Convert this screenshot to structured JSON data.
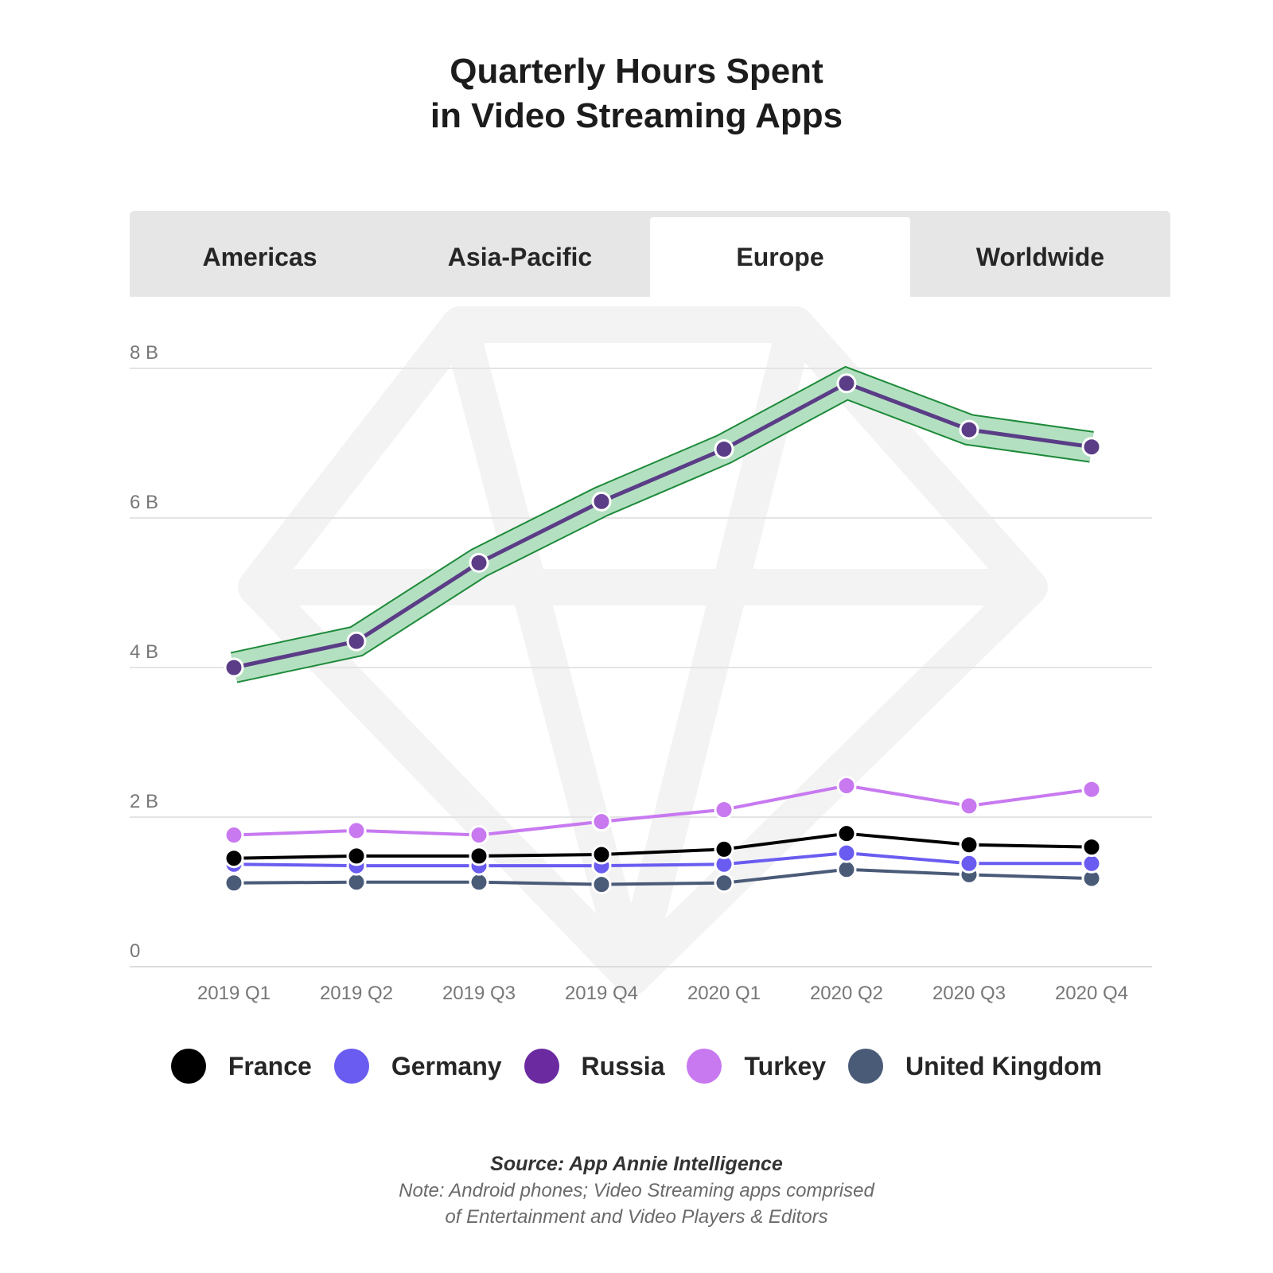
{
  "title": {
    "line1": "Quarterly Hours Spent",
    "line2": "in Video Streaming Apps"
  },
  "tabs": [
    {
      "label": "Americas",
      "active": false
    },
    {
      "label": "Asia-Pacific",
      "active": false
    },
    {
      "label": "Europe",
      "active": true
    },
    {
      "label": "Worldwide",
      "active": false
    }
  ],
  "chart_data": {
    "type": "line",
    "categories": [
      "2019 Q1",
      "2019 Q2",
      "2019 Q3",
      "2019 Q4",
      "2020 Q1",
      "2020 Q2",
      "2020 Q3",
      "2020 Q4"
    ],
    "ylim": [
      0,
      8
    ],
    "yticks": [
      0,
      2,
      4,
      6,
      8
    ],
    "ytick_labels": [
      "0",
      "2 B",
      "4 B",
      "6 B",
      "8 B"
    ],
    "grid": true,
    "highlighted_series": "Russia",
    "series": [
      {
        "name": "France",
        "color": "#000000",
        "values": [
          1.45,
          1.48,
          1.48,
          1.5,
          1.57,
          1.78,
          1.63,
          1.6
        ]
      },
      {
        "name": "Germany",
        "color": "#6a5cf0",
        "values": [
          1.37,
          1.35,
          1.35,
          1.35,
          1.37,
          1.52,
          1.38,
          1.38
        ]
      },
      {
        "name": "Russia",
        "color": "#5a3d86",
        "values": [
          4.0,
          4.35,
          5.4,
          6.22,
          6.92,
          7.8,
          7.18,
          6.95
        ]
      },
      {
        "name": "Turkey",
        "color": "#c879f0",
        "values": [
          1.76,
          1.82,
          1.76,
          1.94,
          2.1,
          2.42,
          2.15,
          2.37
        ]
      },
      {
        "name": "United Kingdom",
        "color": "#4a5b78",
        "values": [
          1.12,
          1.13,
          1.13,
          1.1,
          1.12,
          1.3,
          1.23,
          1.18
        ]
      }
    ]
  },
  "legend": [
    {
      "label": "France",
      "color": "#000000"
    },
    {
      "label": "Germany",
      "color": "#6a5cf0"
    },
    {
      "label": "Russia",
      "color": "#6b2aa0"
    },
    {
      "label": "Turkey",
      "color": "#c879f0"
    },
    {
      "label": "United Kingdom",
      "color": "#4a5b78"
    }
  ],
  "footer": {
    "source": "Source: App Annie Intelligence",
    "note_line1": "Note: Android phones; Video Streaming apps comprised",
    "note_line2": "of Entertainment and Video Players & Editors"
  }
}
